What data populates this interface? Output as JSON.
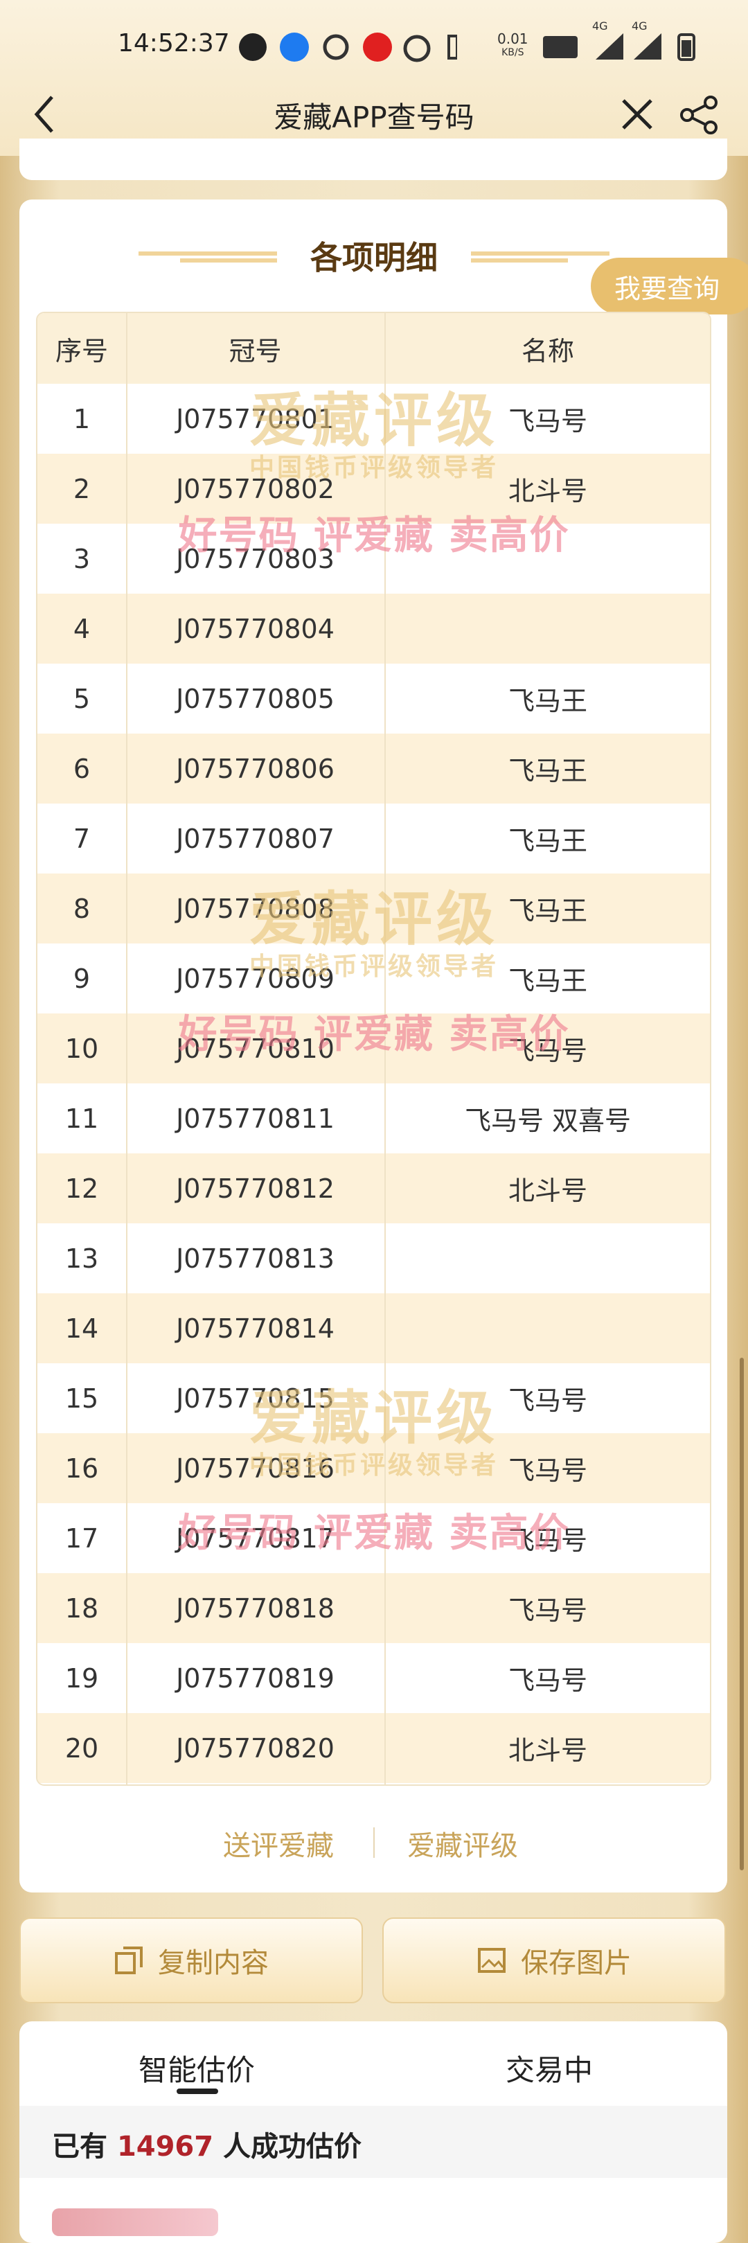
{
  "status_bar": {
    "time": "14:52:37",
    "net_speed": "0.01",
    "net_unit": "KB/S",
    "signal_1": "4G",
    "signal_2": "4G"
  },
  "header": {
    "title": "爱藏APP查号码"
  },
  "detail": {
    "title": "各项明细",
    "query_tag": "我要查询",
    "table": {
      "columns": [
        "序号",
        "冠号",
        "名称"
      ],
      "rows": [
        [
          "1",
          "J075770801",
          "飞马号"
        ],
        [
          "2",
          "J075770802",
          "北斗号"
        ],
        [
          "3",
          "J075770803",
          ""
        ],
        [
          "4",
          "J075770804",
          ""
        ],
        [
          "5",
          "J075770805",
          "飞马王"
        ],
        [
          "6",
          "J075770806",
          "飞马王"
        ],
        [
          "7",
          "J075770807",
          "飞马王"
        ],
        [
          "8",
          "J075770808",
          "飞马王"
        ],
        [
          "9",
          "J075770809",
          "飞马王"
        ],
        [
          "10",
          "J075770810",
          "飞马号"
        ],
        [
          "11",
          "J075770811",
          "飞马号 双喜号"
        ],
        [
          "12",
          "J075770812",
          "北斗号"
        ],
        [
          "13",
          "J075770813",
          ""
        ],
        [
          "14",
          "J075770814",
          ""
        ],
        [
          "15",
          "J075770815",
          "飞马号"
        ],
        [
          "16",
          "J075770816",
          "飞马号"
        ],
        [
          "17",
          "J075770817",
          "飞马号"
        ],
        [
          "18",
          "J075770818",
          "飞马号"
        ],
        [
          "19",
          "J075770819",
          "飞马号"
        ],
        [
          "20",
          "J075770820",
          "北斗号"
        ]
      ]
    },
    "watermark": {
      "brand": "爱藏评级",
      "slogan": "中国钱币评级领导者",
      "motto": "好号码 评爱藏 卖高价"
    },
    "links": [
      "送评爱藏",
      "爱藏评级"
    ]
  },
  "actions": {
    "copy": "复制内容",
    "save": "保存图片"
  },
  "tabs": [
    "智能估价",
    "交易中"
  ],
  "stats": {
    "prefix": "已有",
    "count": "14967",
    "suffix": "人成功估价"
  }
}
